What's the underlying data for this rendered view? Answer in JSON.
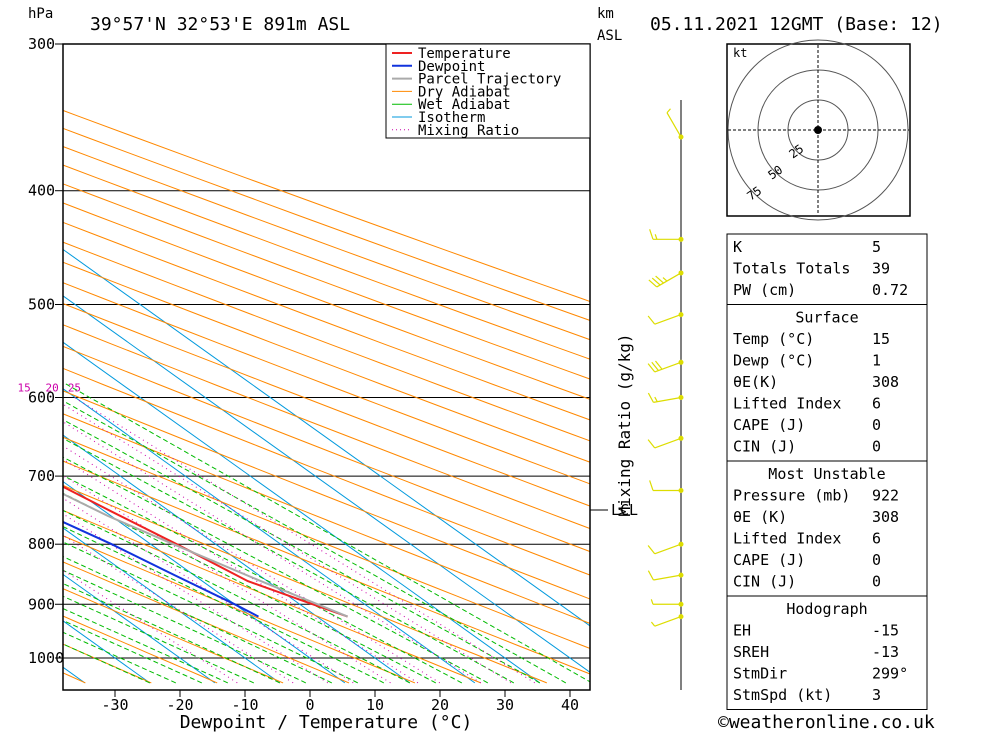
{
  "header": {
    "location": "39°57'N 32°53'E 891m ASL",
    "date": "05.11.2021 12GMT (Base: 12)",
    "p_unit": "hPa",
    "km_unit": "km",
    "asl_unit": "ASL"
  },
  "legend": [
    "Temperature",
    "Dewpoint",
    "Parcel Trajectory",
    "Dry Adiabat",
    "Wet Adiabat",
    "Isotherm",
    "Mixing Ratio"
  ],
  "colors": {
    "temperature": "#ee2222",
    "dewpoint": "#1133dd",
    "parcel": "#aaaaaa",
    "dry_adiabat": "#ff8800",
    "wet_adiabat": "#00bb00",
    "isotherm": "#0099dd",
    "mixing_ratio": "#cc00aa",
    "wind": "#dddd00"
  },
  "chart_data": {
    "type": "line",
    "xlabel": "Dewpoint / Temperature (°C)",
    "ylabel": "hPa",
    "x_ticks": [
      "-30",
      "-20",
      "-10",
      "0",
      "10",
      "20",
      "30",
      "40"
    ],
    "pressure_ticks": [
      "300",
      "400",
      "500",
      "600",
      "700",
      "800",
      "900",
      "1000"
    ],
    "ylim": [
      300,
      1050
    ],
    "xlim": [
      -40,
      42
    ],
    "y_scale": "log",
    "skew": "skew-T",
    "mixing_ratio_axis_label": "Mixing Ratio (g/kg)",
    "mixing_ratio_values": [
      "1",
      "2",
      "3",
      "4",
      "6",
      "8",
      "10",
      "15",
      "20",
      "25"
    ],
    "lcl_label": "LCL",
    "lcl_pressure": 757,
    "series": [
      {
        "name": "Temperature",
        "points": [
          [
            922,
            14.7
          ],
          [
            900,
            12
          ],
          [
            860,
            7
          ],
          [
            800,
            4
          ],
          [
            750,
            1
          ],
          [
            700,
            -2
          ],
          [
            650,
            -5
          ],
          [
            600,
            -8.5
          ],
          [
            550,
            -12.5
          ],
          [
            500,
            -17
          ],
          [
            450,
            -22
          ],
          [
            400,
            -28
          ],
          [
            350,
            -36
          ],
          [
            300,
            -44
          ]
        ]
      },
      {
        "name": "Dewpoint",
        "points": [
          [
            922,
            1
          ],
          [
            900,
            0
          ],
          [
            850,
            -3
          ],
          [
            800,
            -6
          ],
          [
            750,
            -10
          ],
          [
            700,
            -14
          ],
          [
            650,
            -19
          ],
          [
            600,
            -24
          ],
          [
            550,
            -30
          ],
          [
            500,
            -36
          ],
          [
            450,
            -40
          ],
          [
            400,
            -46
          ],
          [
            350,
            -53
          ],
          [
            300,
            -60
          ]
        ]
      },
      {
        "name": "Parcel Trajectory",
        "points": [
          [
            922,
            14.7
          ],
          [
            860,
            9
          ],
          [
            800,
            3.5
          ],
          [
            757,
            -0.5
          ],
          [
            720,
            -3
          ],
          [
            700,
            -4.8
          ],
          [
            650,
            -8
          ],
          [
            600,
            -12
          ],
          [
            550,
            -16.5
          ],
          [
            500,
            -22
          ],
          [
            450,
            -28
          ],
          [
            400,
            -35
          ],
          [
            350,
            -43
          ],
          [
            320,
            -49
          ]
        ]
      }
    ],
    "wind_profile": [
      {
        "p": 922,
        "dir": 250,
        "kt": 5
      },
      {
        "p": 900,
        "dir": 270,
        "kt": 5
      },
      {
        "p": 850,
        "dir": 260,
        "kt": 10
      },
      {
        "p": 800,
        "dir": 250,
        "kt": 10
      },
      {
        "p": 720,
        "dir": 270,
        "kt": 10
      },
      {
        "p": 650,
        "dir": 250,
        "kt": 10
      },
      {
        "p": 600,
        "dir": 260,
        "kt": 15
      },
      {
        "p": 560,
        "dir": 250,
        "kt": 30
      },
      {
        "p": 510,
        "dir": 250,
        "kt": 10
      },
      {
        "p": 470,
        "dir": 240,
        "kt": 35
      },
      {
        "p": 440,
        "dir": 270,
        "kt": 15
      },
      {
        "p": 360,
        "dir": 330,
        "kt": 5
      }
    ],
    "hodograph": {
      "unit": "kt",
      "rings": [
        "25",
        "50",
        "75"
      ]
    }
  },
  "indices": {
    "k_label": "K",
    "k": "5",
    "tt_label": "Totals Totals",
    "tt": "39",
    "pw_label": "PW (cm)",
    "pw": "0.72"
  },
  "surface": {
    "title": "Surface",
    "rows": [
      {
        "label": "Temp (°C)",
        "value": "15"
      },
      {
        "label": "Dewp (°C)",
        "value": "1"
      },
      {
        "label": "θE(K)",
        "value": "308"
      },
      {
        "label": "Lifted Index",
        "value": "6"
      },
      {
        "label": "CAPE (J)",
        "value": "0"
      },
      {
        "label": "CIN (J)",
        "value": "0"
      }
    ]
  },
  "most_unstable": {
    "title": "Most Unstable",
    "rows": [
      {
        "label": "Pressure (mb)",
        "value": "922"
      },
      {
        "label": "θE (K)",
        "value": "308"
      },
      {
        "label": "Lifted Index",
        "value": "6"
      },
      {
        "label": "CAPE (J)",
        "value": "0"
      },
      {
        "label": "CIN (J)",
        "value": "0"
      }
    ]
  },
  "hodograph_table": {
    "title": "Hodograph",
    "rows": [
      {
        "label": "EH",
        "value": "-15"
      },
      {
        "label": "SREH",
        "value": "-13"
      },
      {
        "label": "StmDir",
        "value": "299°"
      },
      {
        "label": "StmSpd (kt)",
        "value": "3"
      }
    ]
  },
  "footer": "©weatheronline.co.uk"
}
